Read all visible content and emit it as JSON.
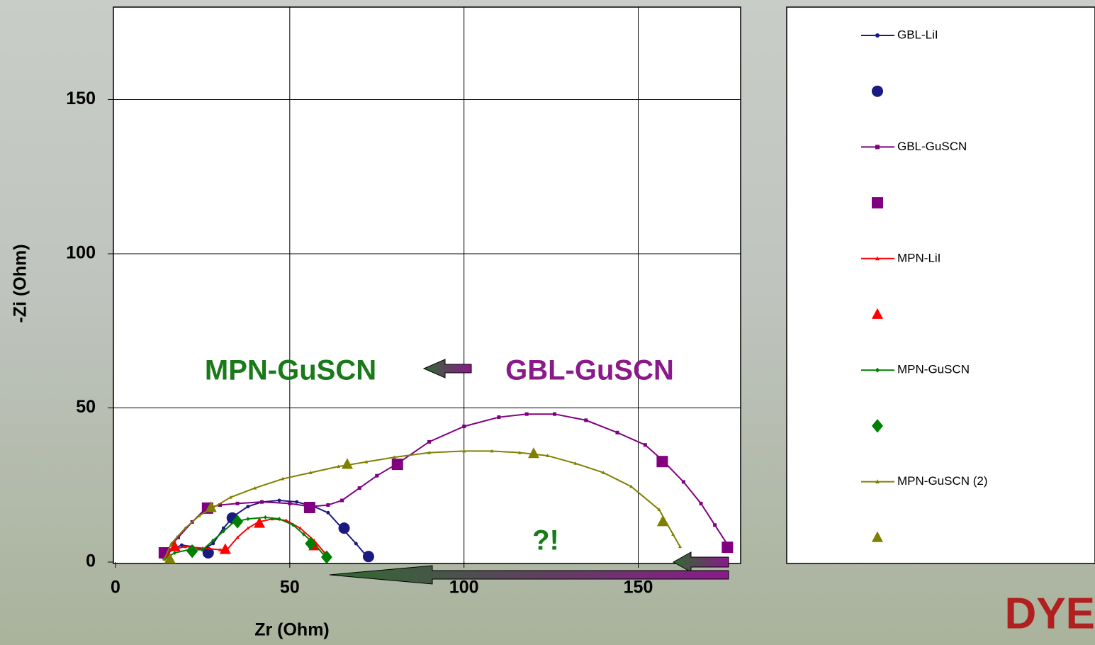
{
  "logo": "DYE",
  "chart_data": {
    "type": "line",
    "x_label": "Zr (Ohm)",
    "y_label": "-Zi (Ohm)",
    "xlim": [
      0,
      180
    ],
    "ylim": [
      0,
      180
    ],
    "xticks": [
      0,
      50,
      100,
      150
    ],
    "yticks": [
      0,
      50,
      100,
      150
    ],
    "grid": true,
    "annotations": [
      "MPN-GuSCN",
      "GBL-GuSCN",
      "?!"
    ],
    "series": [
      {
        "name": "GBL-LiI",
        "color": "#1a1a80",
        "marker": "circle",
        "style": "line",
        "x": [
          14,
          16,
          19,
          22,
          25,
          28,
          31,
          34,
          38,
          42,
          47,
          52,
          57,
          61,
          65,
          69,
          72
        ],
        "values": [
          1,
          4,
          5.5,
          5,
          4,
          6,
          11,
          15,
          18,
          19.5,
          20,
          19.5,
          18,
          16,
          11,
          6,
          2
        ]
      },
      {
        "color": "#1a1a80",
        "marker": "circle",
        "style": "markers",
        "x": [
          26.6,
          33.5,
          65.6,
          72.6
        ],
        "values": [
          3,
          14.3,
          11,
          1.8
        ]
      },
      {
        "name": "GBL-GuSCN",
        "color": "#800080",
        "marker": "square",
        "style": "line",
        "x": [
          14,
          18,
          22,
          26,
          30,
          35,
          42,
          50,
          56,
          61,
          65,
          70,
          75,
          81,
          90,
          100,
          110,
          118,
          126,
          135,
          144,
          152,
          157,
          163,
          168,
          172,
          176
        ],
        "values": [
          3,
          8,
          13,
          17.5,
          18.5,
          19,
          19.5,
          19,
          18,
          18.5,
          20,
          24,
          28,
          32,
          39,
          44,
          47,
          48,
          48,
          46,
          42,
          38,
          33,
          26,
          19,
          12,
          5
        ]
      },
      {
        "color": "#800080",
        "marker": "square",
        "style": "markers",
        "x": [
          14,
          26.4,
          55.7,
          80.9,
          156.9,
          175.6
        ],
        "values": [
          3,
          17.5,
          17.7,
          31.7,
          32.6,
          4.8
        ]
      },
      {
        "name": "MPN-LiI",
        "color": "#ff0000",
        "marker": "triangle",
        "style": "line",
        "x": [
          14,
          16,
          20,
          25,
          30,
          32,
          35,
          38,
          41,
          45,
          49,
          53,
          57,
          60
        ],
        "values": [
          1,
          4,
          5,
          4.5,
          4,
          4,
          8,
          11,
          13,
          14,
          13.5,
          11,
          7,
          3
        ]
      },
      {
        "color": "#ff0000",
        "marker": "triangle",
        "style": "markers",
        "x": [
          17,
          31.5,
          41.3,
          57
        ],
        "values": [
          5,
          4.1,
          12.6,
          5.3
        ]
      },
      {
        "name": "MPN-GuSCN",
        "color": "#008000",
        "marker": "diamond",
        "style": "line",
        "x": [
          14,
          17,
          21,
          25,
          28,
          31,
          34,
          38,
          43,
          47,
          51,
          54,
          57,
          60
        ],
        "values": [
          1,
          3,
          4,
          4,
          7,
          10,
          13,
          14,
          14.5,
          14,
          12,
          9,
          6,
          2
        ]
      },
      {
        "color": "#008000",
        "marker": "diamond",
        "style": "markers",
        "x": [
          22,
          35,
          56,
          60.6
        ],
        "values": [
          3.5,
          13.1,
          6,
          1.6
        ]
      },
      {
        "name": "MPN-GuSCN (2)",
        "color": "#808000",
        "marker": "triangle",
        "style": "line",
        "x": [
          14,
          16,
          20,
          24,
          27,
          33,
          40,
          48,
          56,
          64,
          72,
          80,
          90,
          100,
          108,
          116,
          124,
          132,
          140,
          148,
          156,
          160,
          162
        ],
        "values": [
          1,
          6,
          11,
          15,
          17,
          21,
          24,
          27,
          29,
          31,
          32.5,
          34,
          35.5,
          36,
          36,
          35.5,
          34.5,
          32,
          29,
          24.5,
          17,
          9,
          5
        ]
      },
      {
        "color": "#808000",
        "marker": "triangle",
        "style": "markers",
        "x": [
          15.6,
          27.4,
          66.5,
          120,
          157
        ],
        "values": [
          1,
          17.7,
          31.7,
          35.2,
          13.1
        ]
      }
    ]
  }
}
